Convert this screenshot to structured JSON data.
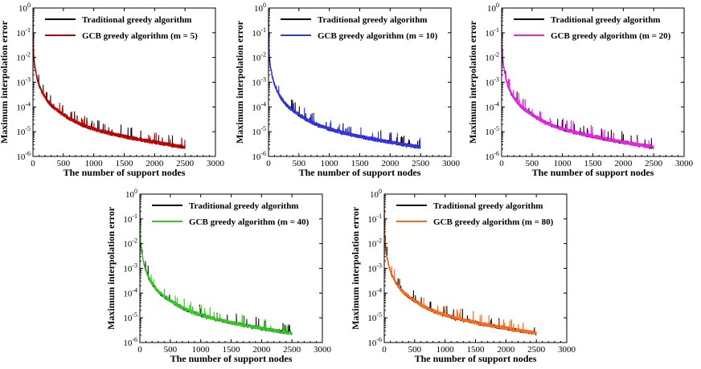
{
  "chart_data": [
    {
      "type": "line",
      "xlabel": "The number of support nodes",
      "ylabel": "Maximum interpolation error",
      "xlim": [
        0,
        3000
      ],
      "ylim": [
        1e-06,
        1
      ],
      "yscale": "log",
      "x_ticks": [
        "0",
        "500",
        "1000",
        "1500",
        "2000",
        "2500",
        "3000"
      ],
      "y_ticks": [
        {
          "base": "10",
          "exp": "-6"
        },
        {
          "base": "10",
          "exp": "-5"
        },
        {
          "base": "10",
          "exp": "-4"
        },
        {
          "base": "10",
          "exp": "-3"
        },
        {
          "base": "10",
          "exp": "-2"
        },
        {
          "base": "10",
          "exp": "-1"
        },
        {
          "base": "10",
          "exp": "0"
        }
      ],
      "legend_position": "top-right",
      "series": [
        {
          "name": "Traditional greedy algorithm",
          "color": "#000000",
          "x": [
            1,
            10,
            50,
            100,
            200,
            300,
            500,
            750,
            1000,
            1500,
            2000,
            2500
          ],
          "y": [
            0.5,
            0.02,
            0.0025,
            0.0008,
            0.00025,
            0.00012,
            5e-05,
            2.2e-05,
            1.3e-05,
            6.5e-06,
            3.8e-06,
            2.4e-06
          ]
        },
        {
          "name": "GCB greedy algorithm (m = 5)",
          "color": "#cc0000",
          "x": [
            1,
            10,
            50,
            100,
            200,
            300,
            500,
            750,
            1000,
            1500,
            2000,
            2500
          ],
          "y": [
            0.5,
            0.02,
            0.0025,
            0.0008,
            0.00025,
            0.00012,
            5e-05,
            2.2e-05,
            1.3e-05,
            6.5e-06,
            3.8e-06,
            2.4e-06
          ]
        }
      ]
    },
    {
      "type": "line",
      "xlabel": "The number of support nodes",
      "ylabel": "Maximum interpolation error",
      "xlim": [
        0,
        3000
      ],
      "ylim": [
        1e-06,
        1
      ],
      "yscale": "log",
      "x_ticks": [
        "0",
        "500",
        "1000",
        "1500",
        "2000",
        "2500",
        "3000"
      ],
      "y_ticks": [
        {
          "base": "10",
          "exp": "-6"
        },
        {
          "base": "10",
          "exp": "-5"
        },
        {
          "base": "10",
          "exp": "-4"
        },
        {
          "base": "10",
          "exp": "-3"
        },
        {
          "base": "10",
          "exp": "-2"
        },
        {
          "base": "10",
          "exp": "-1"
        },
        {
          "base": "10",
          "exp": "0"
        }
      ],
      "legend_position": "top-right",
      "series": [
        {
          "name": "Traditional greedy algorithm",
          "color": "#000000",
          "x": [
            1,
            10,
            50,
            100,
            200,
            300,
            500,
            750,
            1000,
            1500,
            2000,
            2500
          ],
          "y": [
            0.5,
            0.02,
            0.0025,
            0.0008,
            0.00025,
            0.00012,
            5e-05,
            2.2e-05,
            1.3e-05,
            6.5e-06,
            3.8e-06,
            2.4e-06
          ]
        },
        {
          "name": "GCB greedy algorithm (m = 10)",
          "color": "#3333ee",
          "x": [
            1,
            10,
            50,
            100,
            200,
            300,
            500,
            750,
            1000,
            1500,
            2000,
            2500
          ],
          "y": [
            0.5,
            0.02,
            0.0025,
            0.0008,
            0.00025,
            0.00012,
            5e-05,
            2.2e-05,
            1.3e-05,
            6.5e-06,
            3.8e-06,
            2.4e-06
          ]
        }
      ]
    },
    {
      "type": "line",
      "xlabel": "The number of support nodes",
      "ylabel": "Maximum interpolation error",
      "xlim": [
        0,
        3000
      ],
      "ylim": [
        1e-06,
        1
      ],
      "yscale": "log",
      "x_ticks": [
        "0",
        "500",
        "1000",
        "1500",
        "2000",
        "2500",
        "3000"
      ],
      "y_ticks": [
        {
          "base": "10",
          "exp": "-6"
        },
        {
          "base": "10",
          "exp": "-5"
        },
        {
          "base": "10",
          "exp": "-4"
        },
        {
          "base": "10",
          "exp": "-3"
        },
        {
          "base": "10",
          "exp": "-2"
        },
        {
          "base": "10",
          "exp": "-1"
        },
        {
          "base": "10",
          "exp": "0"
        }
      ],
      "legend_position": "top-right",
      "series": [
        {
          "name": "Traditional greedy algorithm",
          "color": "#000000",
          "x": [
            1,
            10,
            50,
            100,
            200,
            300,
            500,
            750,
            1000,
            1500,
            2000,
            2500
          ],
          "y": [
            0.5,
            0.02,
            0.0025,
            0.0008,
            0.00025,
            0.00012,
            5e-05,
            2.2e-05,
            1.3e-05,
            6.5e-06,
            3.8e-06,
            2.4e-06
          ]
        },
        {
          "name": "GCB greedy algorithm (m = 20)",
          "color": "#ee22ee",
          "x": [
            1,
            10,
            50,
            100,
            200,
            300,
            500,
            750,
            1000,
            1500,
            2000,
            2500
          ],
          "y": [
            0.5,
            0.02,
            0.0025,
            0.0008,
            0.00025,
            0.00012,
            5e-05,
            2.2e-05,
            1.3e-05,
            6.5e-06,
            3.8e-06,
            2.4e-06
          ]
        }
      ]
    },
    {
      "type": "line",
      "xlabel": "The number of support nodes",
      "ylabel": "Maximum interpolation error",
      "xlim": [
        0,
        3000
      ],
      "ylim": [
        1e-06,
        1
      ],
      "yscale": "log",
      "x_ticks": [
        "0",
        "500",
        "1000",
        "1500",
        "2000",
        "2500",
        "3000"
      ],
      "y_ticks": [
        {
          "base": "10",
          "exp": "-6"
        },
        {
          "base": "10",
          "exp": "-5"
        },
        {
          "base": "10",
          "exp": "-4"
        },
        {
          "base": "10",
          "exp": "-3"
        },
        {
          "base": "10",
          "exp": "-2"
        },
        {
          "base": "10",
          "exp": "-1"
        },
        {
          "base": "10",
          "exp": "0"
        }
      ],
      "legend_position": "top-right",
      "series": [
        {
          "name": "Traditional greedy algorithm",
          "color": "#000000",
          "x": [
            1,
            10,
            50,
            100,
            200,
            300,
            500,
            750,
            1000,
            1500,
            2000,
            2500
          ],
          "y": [
            0.5,
            0.02,
            0.0025,
            0.0008,
            0.00025,
            0.00012,
            5e-05,
            2.2e-05,
            1.3e-05,
            6.5e-06,
            3.8e-06,
            2.4e-06
          ]
        },
        {
          "name": "GCB greedy algorithm (m = 40)",
          "color": "#33cc22",
          "x": [
            1,
            10,
            50,
            100,
            200,
            300,
            500,
            750,
            1000,
            1500,
            2000,
            2500
          ],
          "y": [
            0.5,
            0.02,
            0.0025,
            0.0008,
            0.00025,
            0.00012,
            5e-05,
            2.2e-05,
            1.3e-05,
            6.5e-06,
            3.8e-06,
            2.4e-06
          ]
        }
      ]
    },
    {
      "type": "line",
      "xlabel": "The number of support nodes",
      "ylabel": "Maximum interpolation error",
      "xlim": [
        0,
        3000
      ],
      "ylim": [
        1e-06,
        1
      ],
      "yscale": "log",
      "x_ticks": [
        "0",
        "500",
        "1000",
        "1500",
        "2000",
        "2500",
        "3000"
      ],
      "y_ticks": [
        {
          "base": "10",
          "exp": "-6"
        },
        {
          "base": "10",
          "exp": "-5"
        },
        {
          "base": "10",
          "exp": "-4"
        },
        {
          "base": "10",
          "exp": "-3"
        },
        {
          "base": "10",
          "exp": "-2"
        },
        {
          "base": "10",
          "exp": "-1"
        },
        {
          "base": "10",
          "exp": "0"
        }
      ],
      "legend_position": "top-right",
      "series": [
        {
          "name": "Traditional greedy algorithm",
          "color": "#000000",
          "x": [
            1,
            10,
            50,
            100,
            200,
            300,
            500,
            750,
            1000,
            1500,
            2000,
            2500
          ],
          "y": [
            0.5,
            0.02,
            0.0025,
            0.0008,
            0.00025,
            0.00012,
            5e-05,
            2.2e-05,
            1.3e-05,
            6.5e-06,
            3.8e-06,
            2.4e-06
          ]
        },
        {
          "name": "GCB greedy algorithm (m = 80)",
          "color": "#ff6a1a",
          "x": [
            1,
            10,
            50,
            100,
            200,
            300,
            500,
            750,
            1000,
            1500,
            2000,
            2500
          ],
          "y": [
            0.5,
            0.02,
            0.0025,
            0.0008,
            0.00025,
            0.00012,
            5e-05,
            2.2e-05,
            1.3e-05,
            6.5e-06,
            3.8e-06,
            2.4e-06
          ]
        }
      ]
    }
  ]
}
